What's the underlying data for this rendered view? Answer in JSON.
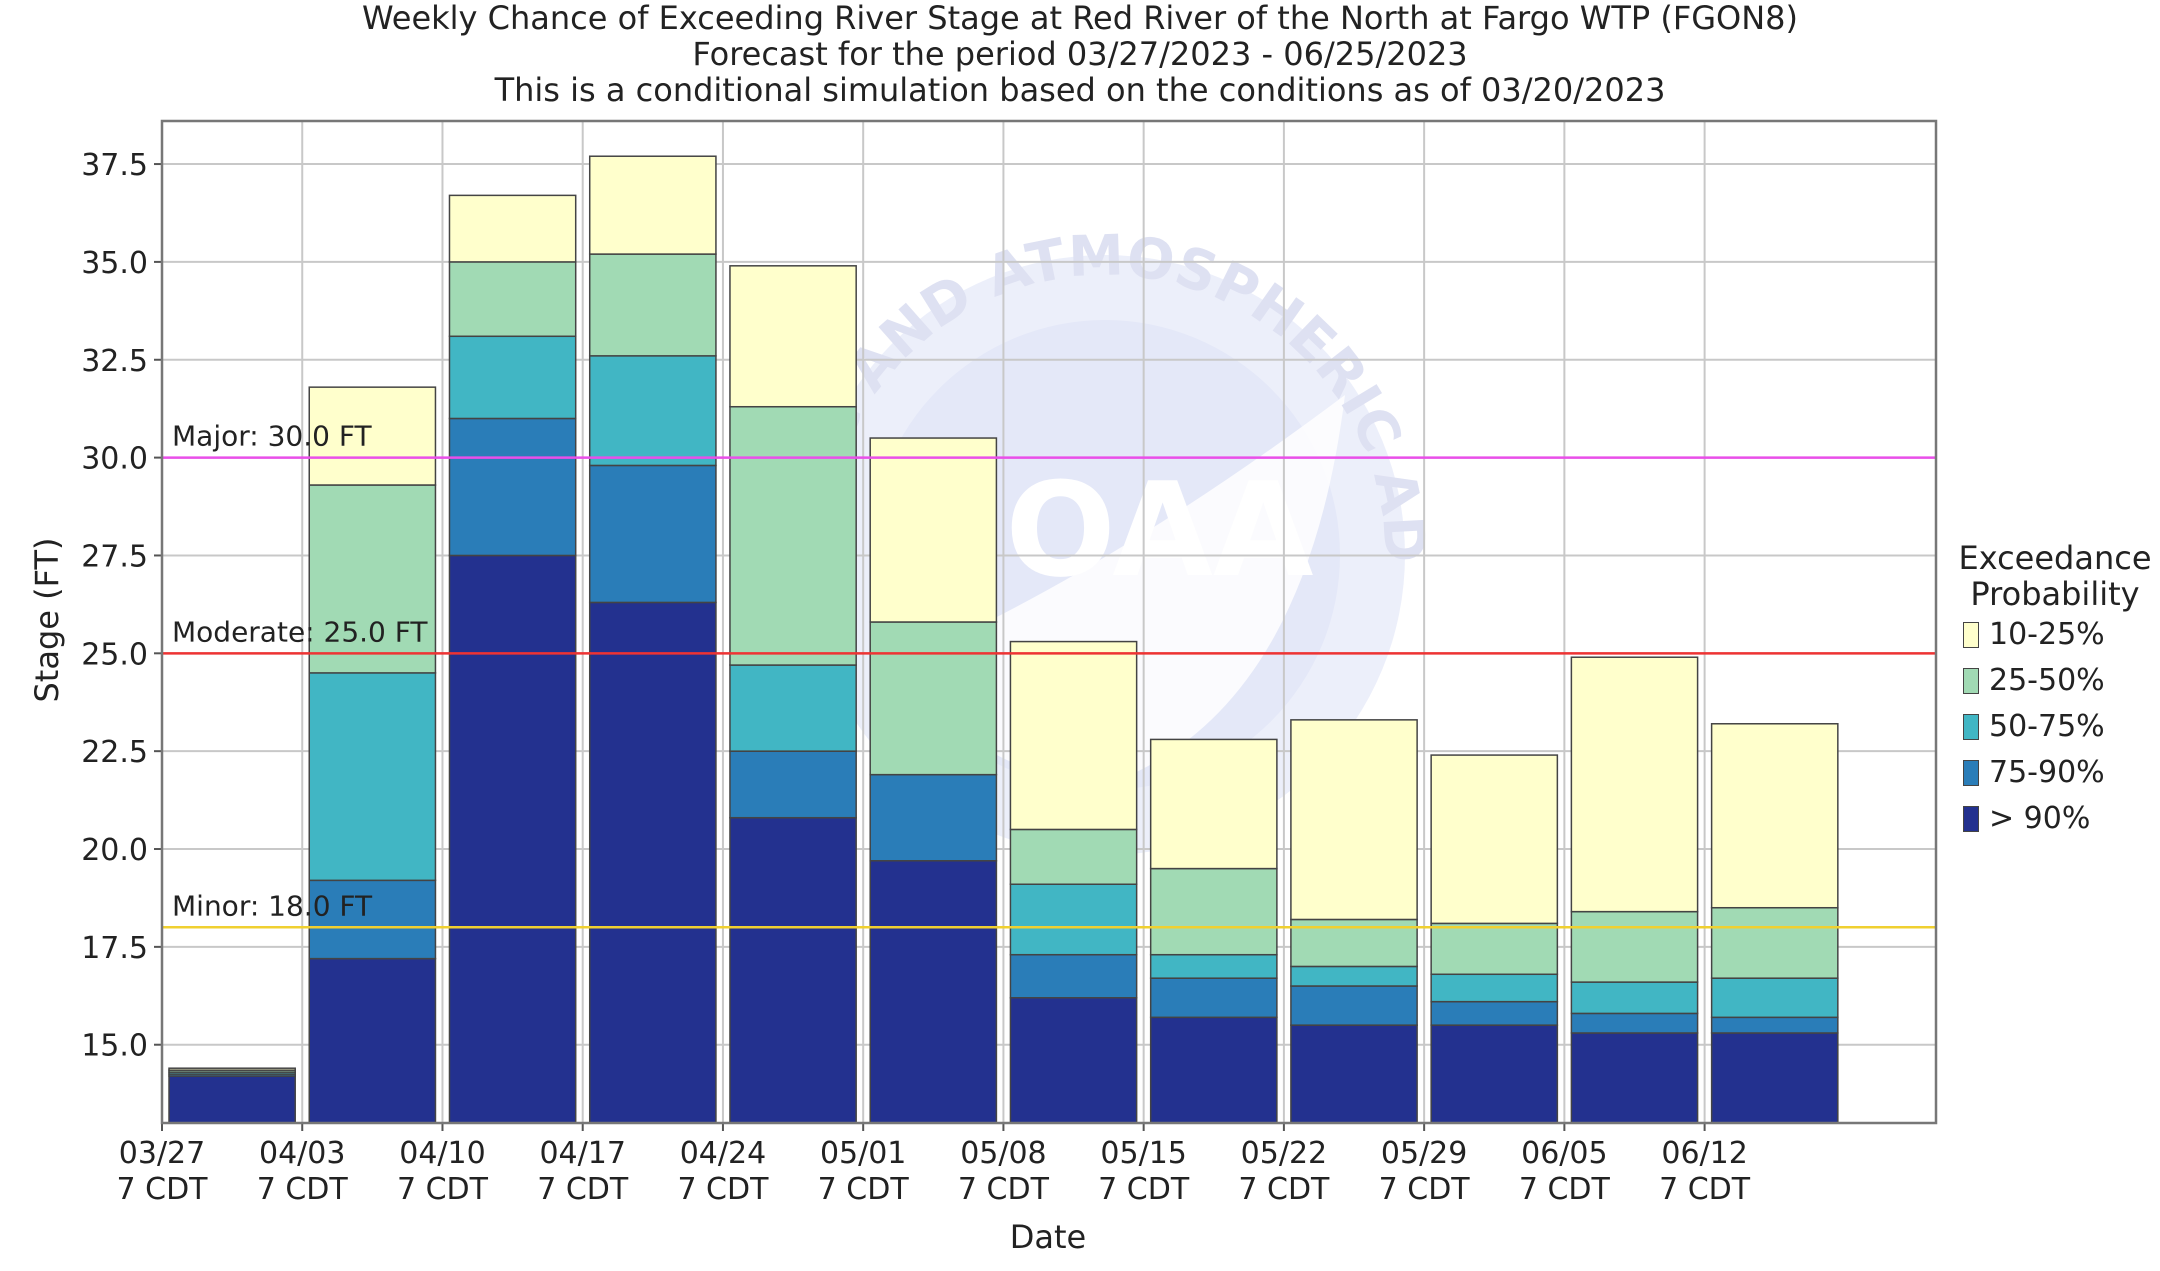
{
  "titles": {
    "line1": "Weekly Chance of Exceeding River Stage at Red River of the North at Fargo WTP (FGON8)",
    "line2": "Forecast for the period 03/27/2023 - 06/25/2023",
    "line3": "This is a conditional simulation based on the conditions as of 03/20/2023"
  },
  "watermark": {
    "text": "NATIONAL OCEANIC AND ATMOSPHERIC ADMINISTRATION",
    "logo_text": "NOAA"
  },
  "chart_data": {
    "type": "bar",
    "stacked_ranges": true,
    "xlabel": "Date",
    "ylabel": "Stage (FT)",
    "ylim": [
      13.0,
      38.6
    ],
    "yticks": [
      15.0,
      17.5,
      20.0,
      22.5,
      25.0,
      27.5,
      30.0,
      32.5,
      35.0,
      37.5
    ],
    "grid": true,
    "legend_position": "right",
    "legend_title": [
      "Exceedance",
      "Probability"
    ],
    "categories": [
      [
        "03/27",
        "7 CDT"
      ],
      [
        "04/03",
        "7 CDT"
      ],
      [
        "04/10",
        "7 CDT"
      ],
      [
        "04/17",
        "7 CDT"
      ],
      [
        "04/24",
        "7 CDT"
      ],
      [
        "05/01",
        "7 CDT"
      ],
      [
        "05/08",
        "7 CDT"
      ],
      [
        "05/15",
        "7 CDT"
      ],
      [
        "05/22",
        "7 CDT"
      ],
      [
        "05/29",
        "7 CDT"
      ],
      [
        "06/05",
        "7 CDT"
      ],
      [
        "06/12",
        "7 CDT"
      ]
    ],
    "series": [
      {
        "name": "> 90%",
        "color": "#23318f",
        "values": [
          14.2,
          17.2,
          27.5,
          26.3,
          20.8,
          19.7,
          16.2,
          15.7,
          15.5,
          15.5,
          15.3,
          15.3
        ]
      },
      {
        "name": "75-90%",
        "color": "#2a7db8",
        "values": [
          14.25,
          19.2,
          31.0,
          29.8,
          22.5,
          21.9,
          17.3,
          16.7,
          16.5,
          16.1,
          15.8,
          15.7
        ]
      },
      {
        "name": "50-75%",
        "color": "#41b6c4",
        "values": [
          14.3,
          24.5,
          33.1,
          32.6,
          24.7,
          21.9,
          19.1,
          17.3,
          17.0,
          16.8,
          16.6,
          16.7
        ]
      },
      {
        "name": "25-50%",
        "color": "#a1dab4",
        "values": [
          14.35,
          29.3,
          35.0,
          35.2,
          31.3,
          25.8,
          20.5,
          19.5,
          18.2,
          18.1,
          18.4,
          18.5
        ]
      },
      {
        "name": "10-25%",
        "color": "#ffffcc",
        "values": [
          14.4,
          31.8,
          36.7,
          37.7,
          34.9,
          30.5,
          25.3,
          22.8,
          23.3,
          22.4,
          24.9,
          23.2
        ]
      }
    ],
    "thresholds": [
      {
        "label": "Major: 30.0 FT",
        "value": 30.0,
        "color": "#e94fe9"
      },
      {
        "label": "Moderate: 25.0 FT",
        "value": 25.0,
        "color": "#ee3333"
      },
      {
        "label": "Minor: 18.0 FT",
        "value": 18.0,
        "color": "#f0d030"
      }
    ]
  }
}
